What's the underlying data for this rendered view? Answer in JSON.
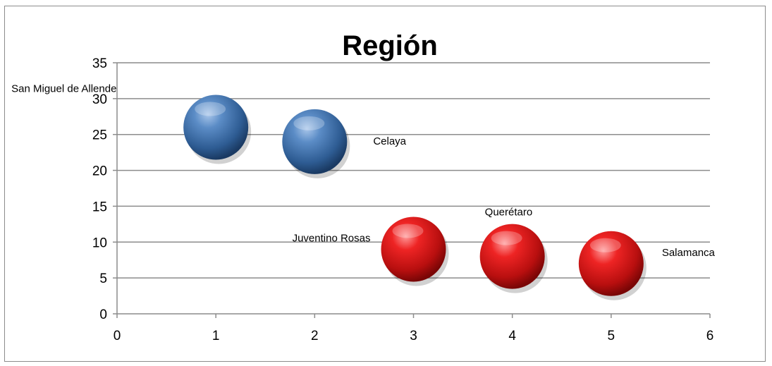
{
  "chart_data": {
    "type": "scatter",
    "title": "Región",
    "xlabel": "",
    "ylabel": "",
    "xlim": [
      0,
      6
    ],
    "ylim": [
      0,
      35
    ],
    "x_ticks": [
      0,
      1,
      2,
      3,
      4,
      5,
      6
    ],
    "y_ticks": [
      0,
      5,
      10,
      15,
      20,
      25,
      30,
      35
    ],
    "grid": true,
    "legend": "none",
    "colors": {
      "blue": "#3d6ba3",
      "red": "#d01616"
    },
    "points": [
      {
        "label": "San Miguel de Allende",
        "x": 1,
        "y": 26,
        "color": "blue"
      },
      {
        "label": "Celaya",
        "x": 2,
        "y": 24,
        "color": "blue"
      },
      {
        "label": "Juventino Rosas",
        "x": 3,
        "y": 9,
        "color": "red"
      },
      {
        "label": "Querétaro",
        "x": 4,
        "y": 8,
        "color": "red"
      },
      {
        "label": "Salamanca",
        "x": 5,
        "y": 7,
        "color": "red"
      }
    ]
  }
}
